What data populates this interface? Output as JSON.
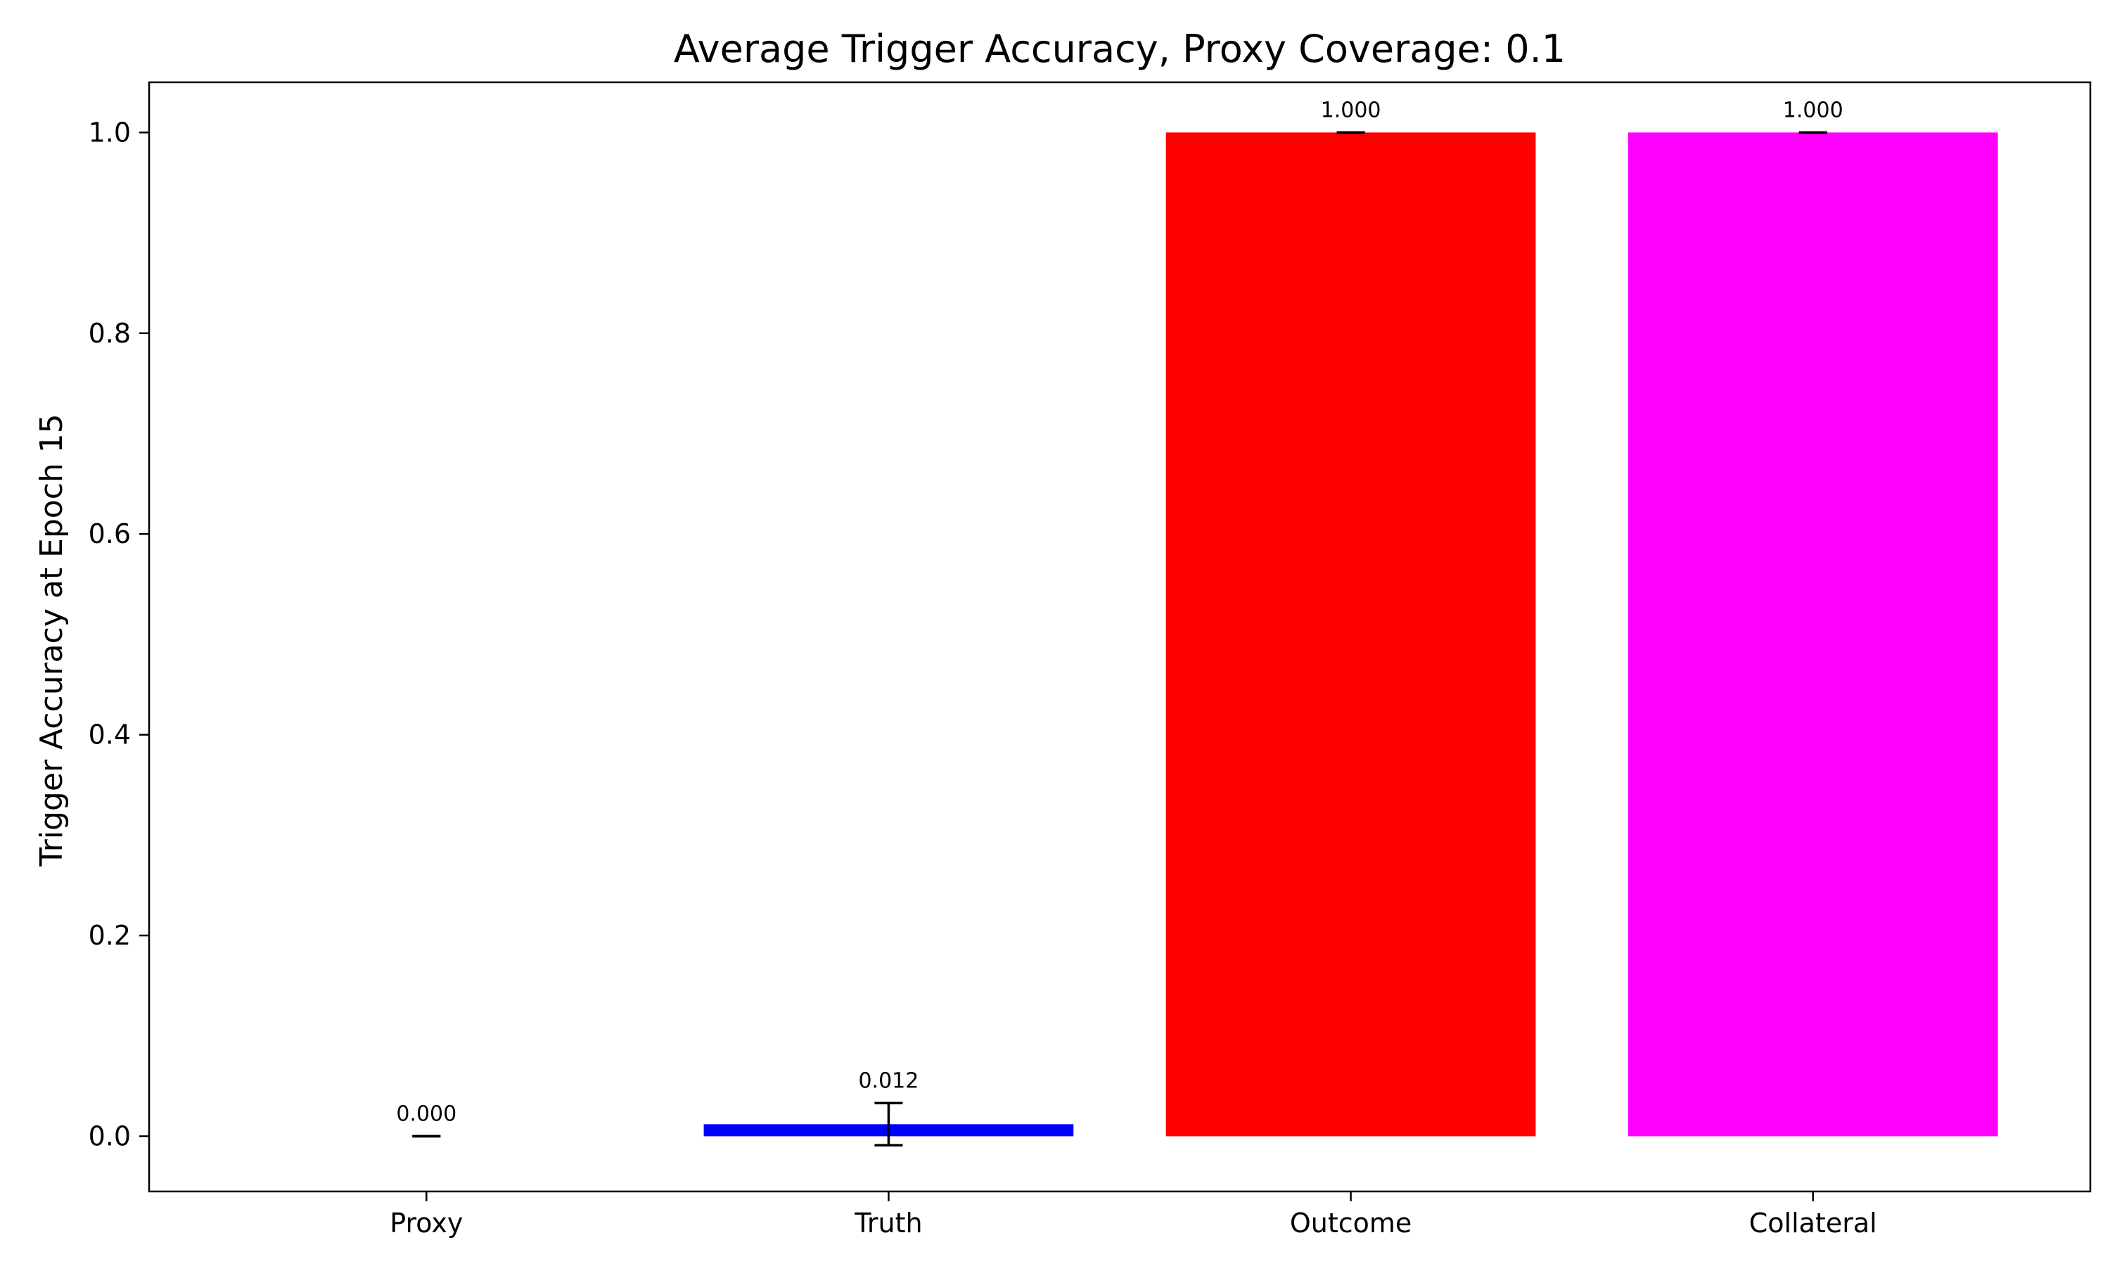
{
  "chart_data": {
    "type": "bar",
    "title": "Average Trigger Accuracy, Proxy Coverage: 0.1",
    "xlabel": "",
    "ylabel": "Trigger Accuracy at Epoch 15",
    "categories": [
      "Proxy",
      "Truth",
      "Outcome",
      "Collateral"
    ],
    "values": [
      0.0,
      0.012,
      1.0,
      1.0
    ],
    "errors": [
      0.0,
      0.021,
      0.0,
      0.0
    ],
    "value_labels": [
      "0.000",
      "0.012",
      "1.000",
      "1.000"
    ],
    "colors": [
      "#008000",
      "#0000ff",
      "#ff0000",
      "#ff00ff"
    ],
    "ylim": [
      -0.055,
      1.05
    ],
    "yticks": [
      0.0,
      0.2,
      0.4,
      0.6,
      0.8,
      1.0
    ],
    "ytick_labels": [
      "0.0",
      "0.2",
      "0.4",
      "0.6",
      "0.8",
      "1.0"
    ],
    "grid": false,
    "legend": "none"
  }
}
